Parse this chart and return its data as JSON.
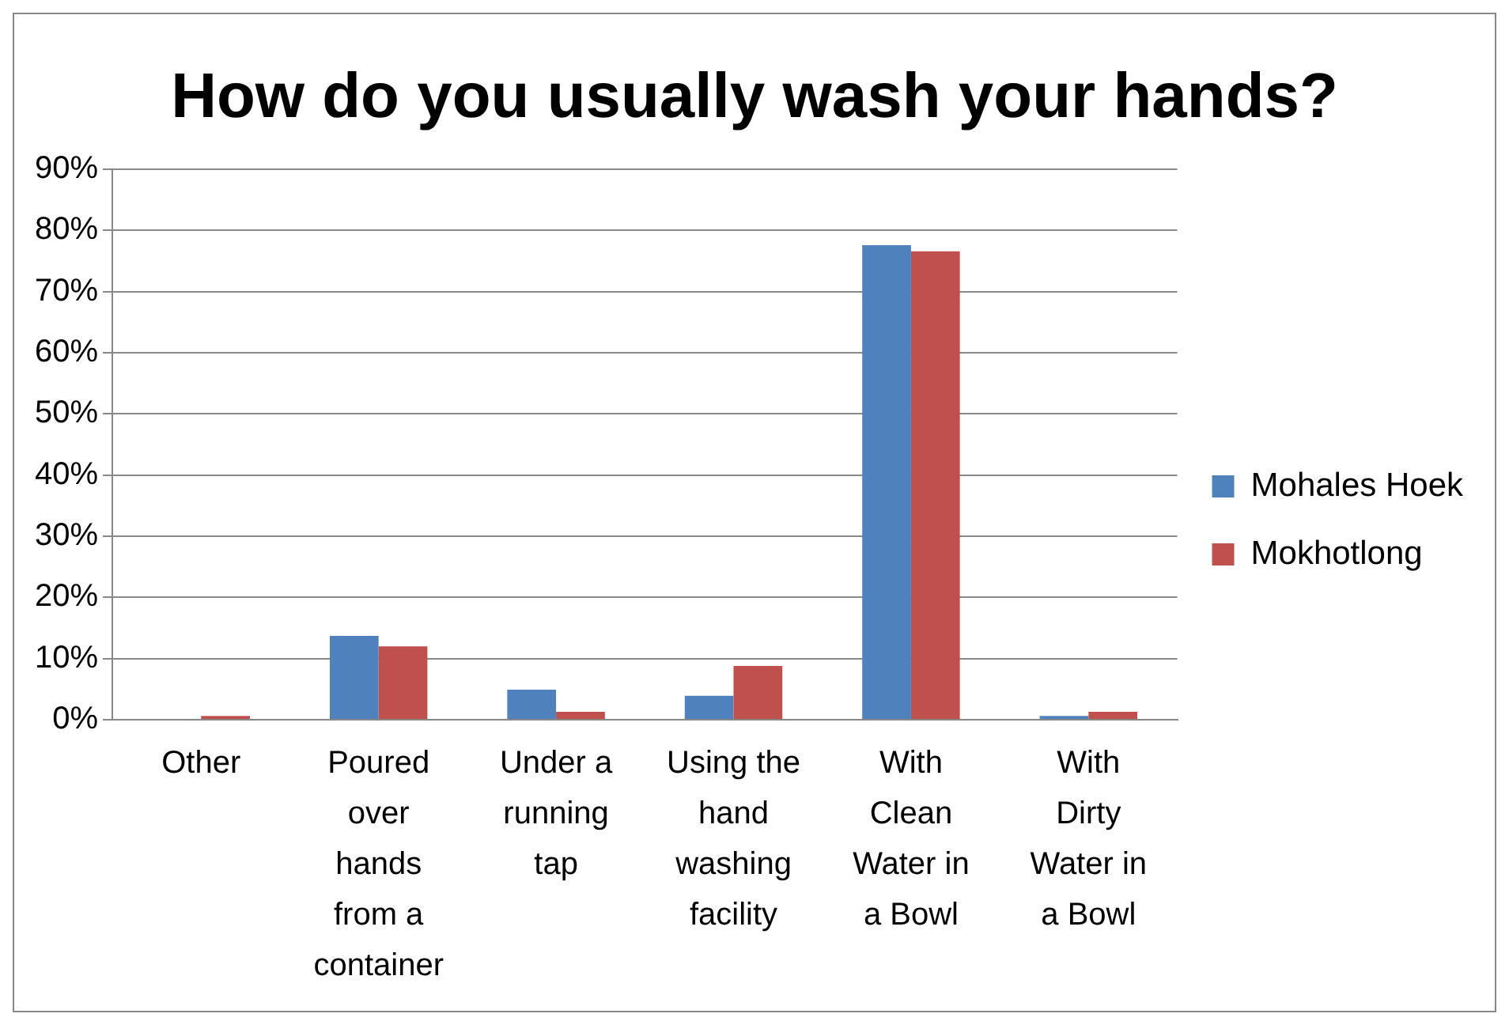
{
  "chart_data": {
    "type": "bar",
    "title": "How do you usually wash your hands?",
    "categories": [
      "Other",
      "Poured over hands from a container",
      "Under a running tap",
      "Using the hand washing facility",
      "With Clean Water in a Bowl",
      "With Dirty Water in a Bowl"
    ],
    "series": [
      {
        "name": "Mohales Hoek",
        "color": "#4f81bd",
        "values": [
          0,
          13.7,
          4.9,
          3.9,
          77.6,
          0.6
        ]
      },
      {
        "name": "Mokhotlong",
        "color": "#c0504d",
        "values": [
          0.6,
          12,
          1.3,
          8.8,
          76.6,
          1.3
        ]
      }
    ],
    "ylim": [
      0,
      90
    ],
    "yticks": [
      {
        "value": 0,
        "label": "0%"
      },
      {
        "value": 10,
        "label": "10%"
      },
      {
        "value": 20,
        "label": "20%"
      },
      {
        "value": 30,
        "label": "30%"
      },
      {
        "value": 40,
        "label": "40%"
      },
      {
        "value": 50,
        "label": "50%"
      },
      {
        "value": 60,
        "label": "60%"
      },
      {
        "value": 70,
        "label": "70%"
      },
      {
        "value": 80,
        "label": "80%"
      },
      {
        "value": 90,
        "label": "90%"
      }
    ],
    "grid": "y",
    "legend": "right"
  }
}
